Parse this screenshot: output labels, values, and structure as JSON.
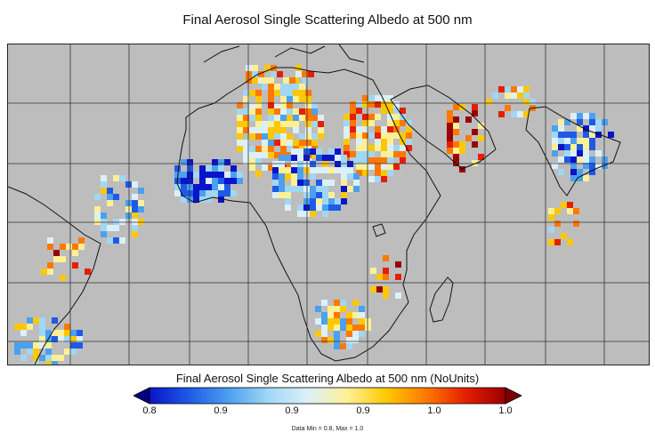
{
  "title": "Final Aerosol Single Scattering Albedo at 500 nm",
  "colorbar": {
    "title": "Final Aerosol Single Scattering Albedo at 500 nm (NoUnits)",
    "ticks": [
      "0.8",
      "0.9",
      "0.9",
      "0.9",
      "1.0",
      "1.0"
    ],
    "stops": [
      "#0a14c8",
      "#1e5ae6",
      "#4ba0f0",
      "#a0d7f5",
      "#dcf0fa",
      "#fff096",
      "#ffc800",
      "#ff7800",
      "#e61e00",
      "#9a0000"
    ],
    "under_color": "#000080",
    "over_color": "#7a0000"
  },
  "footnote": "Data Min = 0.8, Max = 1.0",
  "map": {
    "background": "#bdbdbd",
    "region": "Africa, Middle East, India"
  }
}
